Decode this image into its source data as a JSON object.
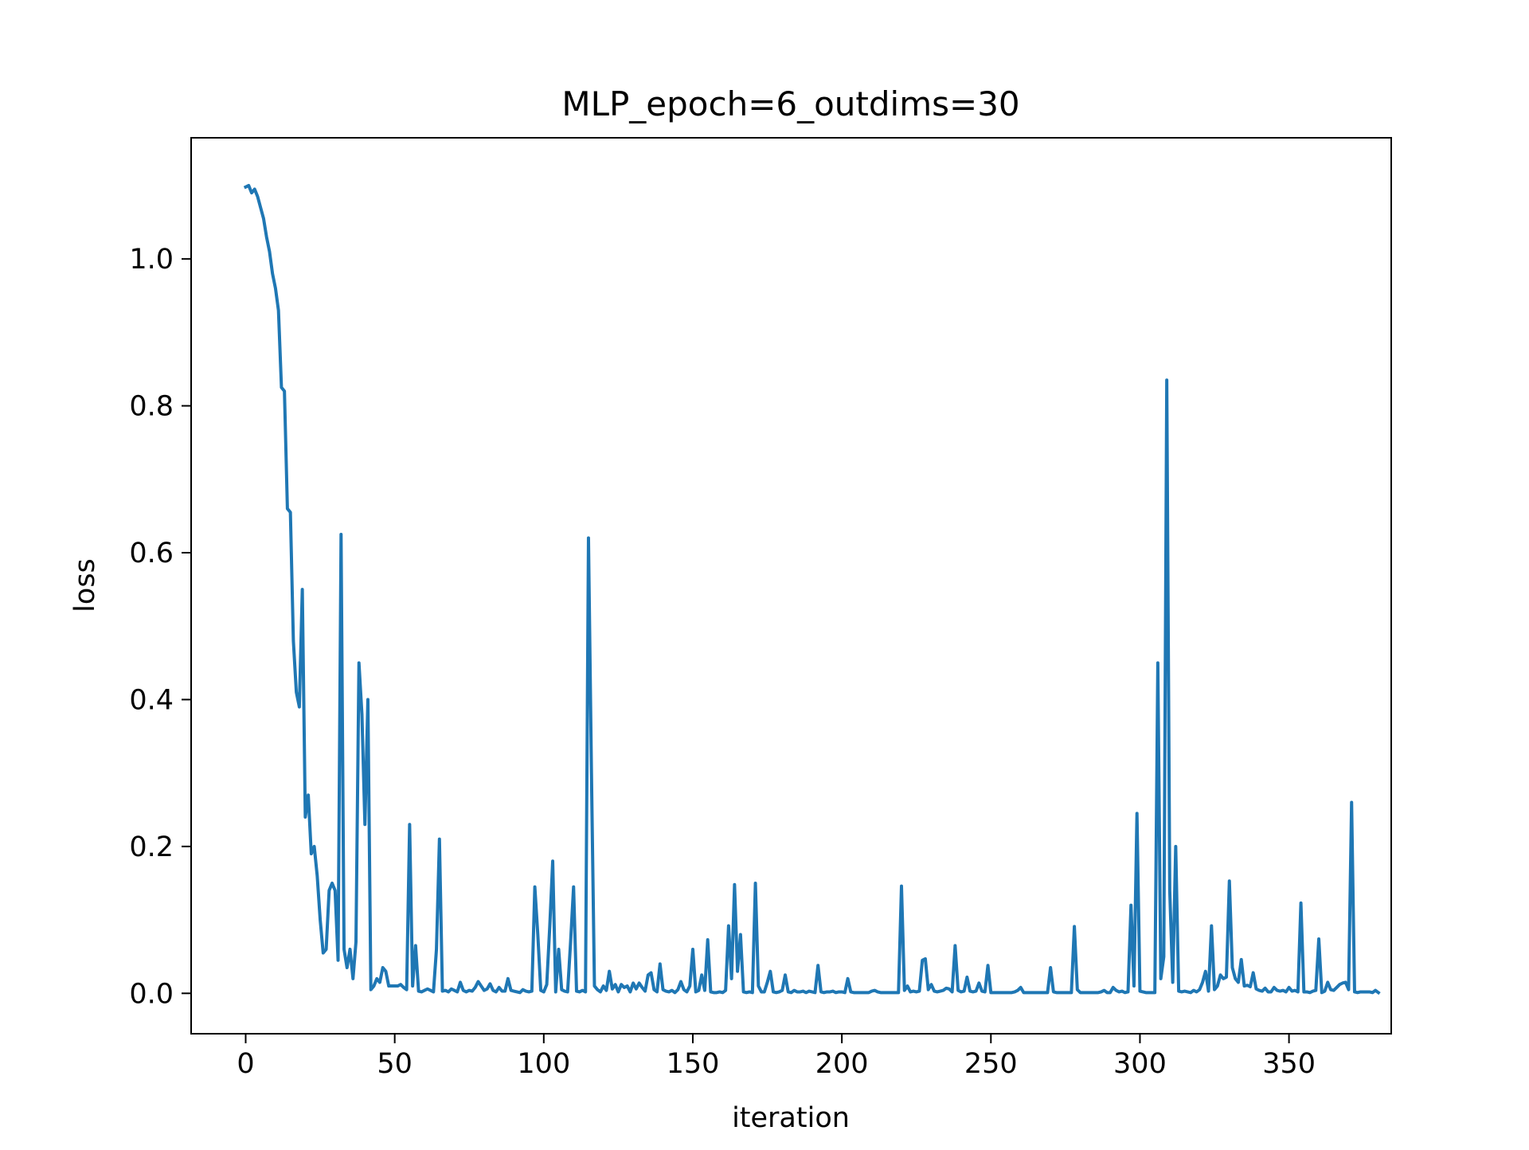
{
  "chart_data": {
    "type": "line",
    "title": "MLP_epoch=6_outdims=30",
    "xlabel": "iteration",
    "ylabel": "loss",
    "xlim": [
      -18.3,
      384.3
    ],
    "ylim": [
      -0.055,
      1.165
    ],
    "xticks": [
      0,
      50,
      100,
      150,
      200,
      250,
      300,
      350
    ],
    "xtick_labels": [
      "0",
      "50",
      "100",
      "150",
      "200",
      "250",
      "300",
      "350"
    ],
    "yticks": [
      0.0,
      0.2,
      0.4,
      0.6,
      0.8,
      1.0
    ],
    "ytick_labels": [
      "0.0",
      "0.2",
      "0.4",
      "0.6",
      "0.8",
      "1.0"
    ],
    "grid": false,
    "line_color": "#1f77b4",
    "series": [
      {
        "values": [
          1.098,
          1.1,
          1.09,
          1.095,
          1.085,
          1.07,
          1.055,
          1.03,
          1.01,
          0.98,
          0.96,
          0.93,
          0.825,
          0.82,
          0.66,
          0.655,
          0.48,
          0.41,
          0.39,
          0.55,
          0.24,
          0.27,
          0.19,
          0.2,
          0.16,
          0.1,
          0.055,
          0.06,
          0.14,
          0.15,
          0.14,
          0.045,
          0.625,
          0.06,
          0.035,
          0.06,
          0.02,
          0.07,
          0.45,
          0.38,
          0.23,
          0.4,
          0.005,
          0.01,
          0.02,
          0.015,
          0.035,
          0.03,
          0.01,
          0.01,
          0.01,
          0.01,
          0.012,
          0.008,
          0.005,
          0.23,
          0.01,
          0.065,
          0.003,
          0.002,
          0.004,
          0.006,
          0.004,
          0.002,
          0.06,
          0.21,
          0.003,
          0.004,
          0.002,
          0.006,
          0.004,
          0.002,
          0.015,
          0.004,
          0.002,
          0.004,
          0.003,
          0.008,
          0.016,
          0.01,
          0.004,
          0.006,
          0.013,
          0.004,
          0.002,
          0.008,
          0.003,
          0.003,
          0.02,
          0.004,
          0.003,
          0.002,
          0.001,
          0.005,
          0.003,
          0.002,
          0.003,
          0.145,
          0.08,
          0.004,
          0.002,
          0.012,
          0.09,
          0.18,
          0.002,
          0.06,
          0.005,
          0.003,
          0.002,
          0.07,
          0.145,
          0.003,
          0.002,
          0.004,
          0.002,
          0.62,
          0.3,
          0.01,
          0.005,
          0.002,
          0.01,
          0.004,
          0.03,
          0.006,
          0.012,
          0.002,
          0.012,
          0.008,
          0.01,
          0.002,
          0.014,
          0.006,
          0.014,
          0.008,
          0.003,
          0.025,
          0.028,
          0.005,
          0.002,
          0.04,
          0.005,
          0.003,
          0.002,
          0.004,
          0.001,
          0.005,
          0.016,
          0.005,
          0.002,
          0.01,
          0.06,
          0.002,
          0.004,
          0.025,
          0.004,
          0.073,
          0.002,
          0.001,
          0.001,
          0.002,
          0.001,
          0.004,
          0.092,
          0.02,
          0.148,
          0.03,
          0.08,
          0.002,
          0.001,
          0.002,
          0.001,
          0.15,
          0.01,
          0.002,
          0.002,
          0.015,
          0.03,
          0.002,
          0.001,
          0.002,
          0.004,
          0.025,
          0.002,
          0.001,
          0.004,
          0.002,
          0.002,
          0.003,
          0.001,
          0.003,
          0.002,
          0.001,
          0.038,
          0.002,
          0.001,
          0.002,
          0.002,
          0.003,
          0.001,
          0.002,
          0.002,
          0.001,
          0.02,
          0.002,
          0.001,
          0.001,
          0.001,
          0.001,
          0.001,
          0.001,
          0.003,
          0.004,
          0.002,
          0.001,
          0.001,
          0.001,
          0.001,
          0.001,
          0.001,
          0.001,
          0.146,
          0.004,
          0.01,
          0.002,
          0.003,
          0.002,
          0.003,
          0.045,
          0.047,
          0.005,
          0.012,
          0.003,
          0.002,
          0.003,
          0.004,
          0.007,
          0.006,
          0.002,
          0.065,
          0.004,
          0.002,
          0.003,
          0.022,
          0.003,
          0.002,
          0.003,
          0.014,
          0.003,
          0.002,
          0.038,
          0.001,
          0.001,
          0.001,
          0.001,
          0.001,
          0.001,
          0.001,
          0.001,
          0.002,
          0.004,
          0.008,
          0.001,
          0.001,
          0.001,
          0.001,
          0.001,
          0.001,
          0.001,
          0.001,
          0.001,
          0.035,
          0.002,
          0.001,
          0.001,
          0.001,
          0.001,
          0.001,
          0.001,
          0.091,
          0.005,
          0.001,
          0.001,
          0.001,
          0.001,
          0.001,
          0.001,
          0.001,
          0.002,
          0.004,
          0.001,
          0.001,
          0.008,
          0.004,
          0.002,
          0.003,
          0.001,
          0.002,
          0.12,
          0.01,
          0.245,
          0.003,
          0.002,
          0.001,
          0.001,
          0.001,
          0.001,
          0.45,
          0.02,
          0.05,
          0.835,
          0.14,
          0.015,
          0.2,
          0.003,
          0.002,
          0.003,
          0.002,
          0.001,
          0.004,
          0.002,
          0.005,
          0.015,
          0.03,
          0.003,
          0.092,
          0.005,
          0.01,
          0.025,
          0.02,
          0.022,
          0.153,
          0.035,
          0.02,
          0.015,
          0.046,
          0.01,
          0.011,
          0.009,
          0.028,
          0.006,
          0.004,
          0.003,
          0.007,
          0.002,
          0.002,
          0.008,
          0.004,
          0.003,
          0.004,
          0.002,
          0.008,
          0.003,
          0.004,
          0.002,
          0.123,
          0.002,
          0.002,
          0.001,
          0.003,
          0.004,
          0.074,
          0.001,
          0.003,
          0.015,
          0.005,
          0.004,
          0.008,
          0.012,
          0.014,
          0.015,
          0.005,
          0.26,
          0.002,
          0.001,
          0.002,
          0.002,
          0.002,
          0.002,
          0.001,
          0.004,
          0.001
        ]
      }
    ]
  }
}
